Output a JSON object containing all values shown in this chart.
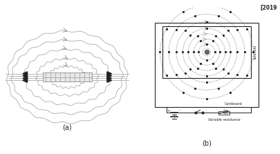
{
  "title_text": "[2019",
  "label_a": "(a)",
  "label_b": "(b)",
  "solenoid_label": "Solenoid",
  "cardboard_label": "Cardboard",
  "variable_resistance_label": "Variable resistance",
  "bg_color": "#ffffff",
  "line_color": "#aaaaaa",
  "dark_color": "#222222",
  "gray2": "#999999"
}
